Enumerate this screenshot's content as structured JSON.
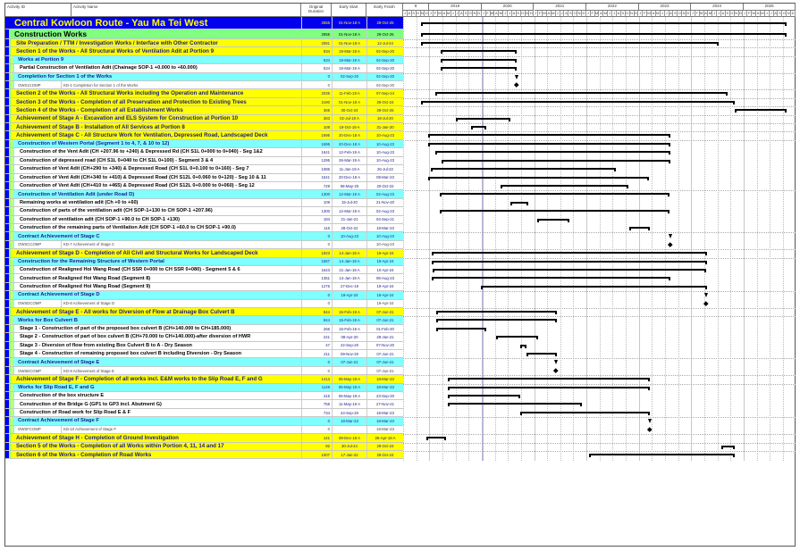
{
  "columns": {
    "id": "Activity ID",
    "name": "Activity Name",
    "duration": "Original Duration",
    "start": "Early Start",
    "finish": "Early Finish"
  },
  "colors": {
    "level0": "#0000ee",
    "level1": "#80ff80",
    "level2": "#ffff00",
    "level3": "#80ffff",
    "level4": "#ffffff",
    "bar": "#000000",
    "data_date_line": "#b8b8d8"
  },
  "timescale": {
    "years": [
      "8",
      "2019",
      "2020",
      "2021",
      "2022",
      "2023",
      "2024",
      "2025"
    ],
    "month_initials": "JFMAMJJASOND",
    "start_month": "Jul-2018",
    "end_month": "Dec-2025",
    "data_date": "01-Jan-20"
  },
  "rows": [
    {
      "level": 0,
      "name": "Central Kowloon Route - Yau Ma Tei West",
      "duration": "2555",
      "start": "01-Nov-18 A",
      "finish": "29-Oct-25"
    },
    {
      "level": 1,
      "name": "Construction Works",
      "duration": "2555",
      "start": "01-Nov-18 A",
      "finish": "29-Oct-25"
    },
    {
      "level": 2,
      "name": "Site Preparation / TTM / Investigation Works / Interface with Other Contractor",
      "duration": "2081",
      "start": "01-Nov-18 A",
      "finish": "12-Jul-24"
    },
    {
      "level": 2,
      "name": "Section 1 of the Works - All Structural Works of Ventilation Adit at Portion 9",
      "duration": "534",
      "start": "19-Mar-19 A",
      "finish": "02-Sep-20"
    },
    {
      "level": 3,
      "name": "Works at Portion 9",
      "duration": "534",
      "start": "19-Mar-19 A",
      "finish": "02-Sep-20"
    },
    {
      "level": 4,
      "name": "Partial Construction of Ventilation Adit (Chainage SOP-1 +0.000 to +60.000)",
      "duration": "534",
      "start": "19-Mar-19 A",
      "finish": "02-Sep-20"
    },
    {
      "level": 3,
      "name": "Completion for Section 1 of the Works",
      "duration": "0",
      "start": "02-Sep-20",
      "finish": "02-Sep-20"
    },
    {
      "level": 4,
      "code": true,
      "id": "OWS1COMP",
      "name": "KD-1 Completion for Section 1 of the Works",
      "duration": "0",
      "start": "",
      "finish": "02-Sep-20"
    },
    {
      "level": 2,
      "name": "Section 2 of the Works - All Structural Works including the Operation and Maintenance",
      "duration": "2035",
      "start": "11-Feb-19 A",
      "finish": "07-Sep-24"
    },
    {
      "level": 2,
      "name": "Section 3 of the Works - Completion of all Preservation and Protection to Existing Trees",
      "duration": "2190",
      "start": "01-Nov-18 A",
      "finish": "29-Oct-24"
    },
    {
      "level": 2,
      "name": "Section 4 of the Works - Completion of all Establishment Works",
      "duration": "365",
      "start": "30-Oct-24",
      "finish": "29-Oct-25"
    },
    {
      "level": 2,
      "name": "Achievement of Stage A -  Excavation and ELS System for Construction at Portion 10",
      "duration": "383",
      "start": "02-Jul-19 A",
      "finish": "18-Jul-20"
    },
    {
      "level": 2,
      "name": "Achievement of Stage B -  Installation of All Services at Portion 8",
      "duration": "108",
      "start": "19-Oct-19 A",
      "finish": "31-Jan-20"
    },
    {
      "level": 2,
      "name": "Achievement of Stage C -  All Structure Work for Ventilation, Depressed Road, Landscaped Deck",
      "duration": "1695",
      "start": "20-Dec-18 A",
      "finish": "10-Aug-23"
    },
    {
      "level": 3,
      "name": "Construction of Western Portal (Segment 1 to 4, 7, & 10 to 12)",
      "duration": "1695",
      "start": "20-Dec-18 A",
      "finish": "10-Aug-23"
    },
    {
      "level": 4,
      "name": "Construction of the Vent Adit (CH +207.96 to  +240) & Depressed Rd (CH S1L 0+000 to 0+040) - Seg 1&2",
      "duration": "1641",
      "start": "12-Feb-19 A",
      "finish": "10-Aug-23"
    },
    {
      "level": 4,
      "name": "Construction of depressed road (CH S1L 0+040 to CH S1L 0+100) - Segment 3 & 4",
      "duration": "1295",
      "start": "26-Mar-19 A",
      "finish": "10-Aug-23"
    },
    {
      "level": 4,
      "name": "Construction of Vent Adit (CH+290 to +340) & Depressed Road (CH S1L 0+0.100 to 0+160) - Seg 7",
      "duration": "1086",
      "start": "11-Jan-19 A",
      "finish": "26-Jul-22"
    },
    {
      "level": 4,
      "name": "Construction of Vent Adit (CH+340 to +410) & Depressed Road (CH S12L 0+0.060 to 0+120) - Seg 10 & 11",
      "duration": "1541",
      "start": "20-Dec-18 A",
      "finish": "09-Mar-23"
    },
    {
      "level": 4,
      "name": "Construction of Vent Adit (CH+410 to +465) & Depressed Road (CH S12L 0+0.000 to 0+060) - Seg 12",
      "duration": "729",
      "start": "08-May-20",
      "finish": "20-Oct-22"
    },
    {
      "level": 3,
      "name": "Construction of Ventilation Adit (under Road D)",
      "duration": "1300",
      "start": "12-Mar-19 A",
      "finish": "02-Aug-23"
    },
    {
      "level": 4,
      "name": "Remaining works at ventilation adit (Ch +0 to +60)",
      "duration": "109",
      "start": "15-Jul-20",
      "finish": "21-Nov-20"
    },
    {
      "level": 4,
      "name": "Construction of parts of the ventilation adit (CH SOP-1+130 to CH SOP-1 +207.96)",
      "duration": "1300",
      "start": "12-Mar-19 A",
      "finish": "02-Aug-23"
    },
    {
      "level": 4,
      "name": "Construction of ventilation adit (CH SOP-1 +90.0 to CH SOP-1 +130)",
      "duration": "184",
      "start": "21-Jan-21",
      "finish": "04-Sep-21"
    },
    {
      "level": 4,
      "name": "Construction of the remaining parts of Ventilation Adit (CH SOP-1 +60.0 to CH SOP-1 +90.0)",
      "duration": "116",
      "start": "28-Oct-22",
      "finish": "18-Mar-23"
    },
    {
      "level": 3,
      "name": "Contract Achievement of Stage C",
      "duration": "0",
      "start": "10-Aug-23",
      "finish": "10-Aug-23"
    },
    {
      "level": 4,
      "code": true,
      "id": "OWSCCOMP",
      "name": "KD-7 Achievement of Stage C",
      "duration": "0",
      "start": "",
      "finish": "10-Aug-23"
    },
    {
      "level": 2,
      "name": "Achievement of Stage D -  Completion of All Civil and Structural Works for Landscaped Deck",
      "duration": "1923",
      "start": "14-Jan-19 A",
      "finish": "19-Apr-24"
    },
    {
      "level": 3,
      "name": "Construction for the Remaining Structure of Western Portal",
      "duration": "1557",
      "start": "14-Jan-19 A",
      "finish": "19-Apr-24"
    },
    {
      "level": 4,
      "name": "Construction of Realigned Hoi Wang Road (CH SSR 0+000 to CH SSR 0+080) - Segment 5 & 6",
      "duration": "1543",
      "start": "21-Jan-19 A",
      "finish": "10-Apr-24"
    },
    {
      "level": 4,
      "name": "Construction of Realigned Hoi Wang Road (Segment 8)",
      "duration": "1351",
      "start": "14-Jan-19 A",
      "finish": "08-Aug-23"
    },
    {
      "level": 4,
      "name": "Construction of Realigned Hoi Wang Road (Segment 9)",
      "duration": "1275",
      "start": "27-Dec-19",
      "finish": "19-Apr-24"
    },
    {
      "level": 3,
      "name": "Contract Achievement of Stage D",
      "duration": "0",
      "start": "19-Apr-24",
      "finish": "19-Apr-24"
    },
    {
      "level": 4,
      "code": true,
      "id": "OWSDCOMP",
      "name": "KD-8 Achievement of Stage D",
      "duration": "0",
      "start": "",
      "finish": "19-Apr-24"
    },
    {
      "level": 2,
      "name": "Achievement of Stage E -  All works for Diversion of Flow at Drainage Box Culvert B",
      "duration": "844",
      "start": "15-Feb-19 A",
      "finish": "07-Jun-21"
    },
    {
      "level": 3,
      "name": "Works for Box Culvert B",
      "duration": "844",
      "start": "15-Feb-19 A",
      "finish": "07-Jun-21"
    },
    {
      "level": 4,
      "name": "Stage 1 - Construction of part of the proposed box culvert B (CH+140.000 to CH+185.000)",
      "duration": "266",
      "start": "15-Feb-19 A",
      "finish": "01-Feb-20"
    },
    {
      "level": 4,
      "name": "Stage 2 - Construction of part of box culvert B (CH+70.000 to CH+140.000)-after diversion of HWR",
      "duration": "241",
      "start": "08-Apr-20",
      "finish": "29-Jan-21"
    },
    {
      "level": 4,
      "name": "Stage 3 - Diversion of flow from existing Box Culvert B to A - Dry Season",
      "duration": "47",
      "start": "22-Sep-20",
      "finish": "07-Nov-20"
    },
    {
      "level": 4,
      "name": "Stage 4 - Construction of remaining proposed box culvert B including Diversion - Dry Season",
      "duration": "211",
      "start": "09-Nov-20",
      "finish": "07-Jun-21"
    },
    {
      "level": 3,
      "name": "Contract Achievement of Stage E",
      "duration": "0",
      "start": "07-Jun-21",
      "finish": "07-Jun-21"
    },
    {
      "level": 4,
      "code": true,
      "id": "OWSECOMP",
      "name": "KD-9 Achievement of Stage E",
      "duration": "0",
      "start": "",
      "finish": "07-Jun-21"
    },
    {
      "level": 2,
      "name": "Achievement of Stage F -  Completion of all works incl. E&M works to the Slip Road E, F and G",
      "duration": "1413",
      "start": "06-May-19 A",
      "finish": "18-Mar-23"
    },
    {
      "level": 3,
      "name": "Works for Slip Road E, F and G",
      "duration": "1149",
      "start": "06-May-19 A",
      "finish": "18-Mar-23"
    },
    {
      "level": 4,
      "name": "Construction of the box structure E",
      "duration": "415",
      "start": "06-May-19 A",
      "finish": "23-Sep-20"
    },
    {
      "level": 4,
      "name": "Construction of the Bridge G (GP1 to GP3 incl. Abutment G)",
      "duration": "759",
      "start": "11-May-19 A",
      "finish": "27-Nov-21"
    },
    {
      "level": 4,
      "name": "Construction of Road work for Slip Road E & F",
      "duration": "734",
      "start": "24-Sep-20",
      "finish": "18-Mar-23"
    },
    {
      "level": 3,
      "name": "Contract Achievement of Stage F",
      "duration": "0",
      "start": "18-Mar-23",
      "finish": "18-Mar-23"
    },
    {
      "level": 4,
      "code": true,
      "id": "OWSFCOMP",
      "name": "KD-10 Achievement of Stage F",
      "duration": "0",
      "start": "",
      "finish": "18-Mar-23"
    },
    {
      "level": 2,
      "name": "Achievement of Stage H -  Completion of Ground Investigation",
      "duration": "141",
      "start": "09-Dec-18 A",
      "finish": "26-Apr-19 A"
    },
    {
      "level": 2,
      "name": "Section 5 of the Works - Completion of all Works within Portion 4, 11, 14 and 17",
      "duration": "92",
      "start": "30-Jul-24",
      "finish": "29-Oct-24"
    },
    {
      "level": 2,
      "name": "Section 6 of the Works - Completion of Road Works",
      "duration": "1007",
      "start": "17-Jan-22",
      "finish": "29-Oct-24"
    }
  ]
}
